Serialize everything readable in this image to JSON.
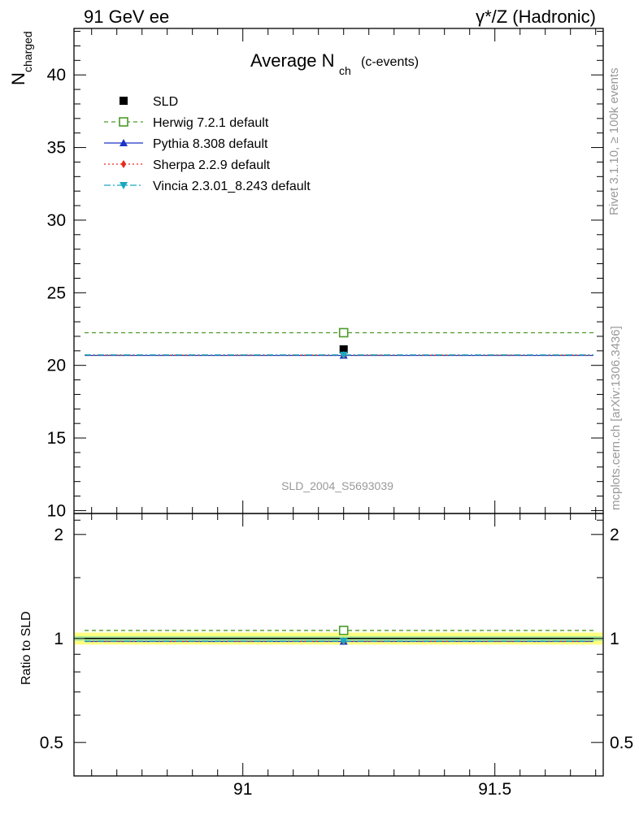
{
  "header": {
    "left": "91 GeV ee",
    "right": "γ*/Z (Hadronic)"
  },
  "side_labels": {
    "rivet": "Rivet 3.1.10, ≥ 100k events",
    "mcplots": "mcplots.cern.ch [arXiv:1306.3436]"
  },
  "watermark": "SLD_2004_S5693039",
  "chart_data": [
    {
      "type": "line",
      "title": "Average N",
      "title_sub": "ch",
      "title_extra": "(c-events)",
      "ylabel": "N",
      "ylabel_sub": "charged",
      "x_range": [
        90.665,
        91.715
      ],
      "ylim": [
        9.8,
        43.2
      ],
      "y_ticks": [
        "10",
        "15",
        "20",
        "25",
        "30",
        "35",
        "40"
      ],
      "x_ticks": [
        "91",
        "91.5"
      ],
      "legend_position": "top-left",
      "series": [
        {
          "name": "SLD",
          "x": 91.2,
          "y": 21.1,
          "marker": "square-filled",
          "color": "#000000"
        },
        {
          "name": "Herwig 7.2.1 default",
          "x": 91.2,
          "y": 22.25,
          "marker": "square-open",
          "line": "dashed",
          "color": "#4c9a2a"
        },
        {
          "name": "Pythia 8.308 default",
          "x": 91.2,
          "y": 20.68,
          "marker": "triangle-up",
          "line": "solid",
          "color": "#1a33c8"
        },
        {
          "name": "Sherpa 2.2.9 default",
          "x": 91.2,
          "y": 20.7,
          "marker": "diamond",
          "line": "dotted",
          "color": "#e8291c"
        },
        {
          "name": "Vincia 2.3.01_8.243 default",
          "x": 91.2,
          "y": 20.72,
          "marker": "triangle-down",
          "line": "dashdot",
          "color": "#1aa8c0"
        }
      ]
    },
    {
      "type": "line",
      "ylabel": "Ratio to SLD",
      "x_range": [
        90.665,
        91.715
      ],
      "ylim": [
        0.4,
        2.3
      ],
      "y_scale": "log",
      "y_ticks": [
        "0.5",
        "1",
        "2"
      ],
      "x_ticks": [
        "91",
        "91.5"
      ],
      "band": {
        "outer": [
          0.96,
          1.04
        ],
        "inner": [
          0.985,
          1.015
        ],
        "outer_color": "#ffff80",
        "inner_color": "#a8e89a"
      },
      "series": [
        {
          "name": "Herwig 7.2.1 default",
          "y": 1.055,
          "color": "#4c9a2a"
        },
        {
          "name": "Pythia 8.308 default",
          "y": 0.98,
          "color": "#1a33c8"
        },
        {
          "name": "Sherpa 2.2.9 default",
          "y": 0.981,
          "color": "#e8291c"
        },
        {
          "name": "Vincia 2.3.01_8.243 default",
          "y": 0.982,
          "color": "#1aa8c0"
        }
      ]
    }
  ]
}
